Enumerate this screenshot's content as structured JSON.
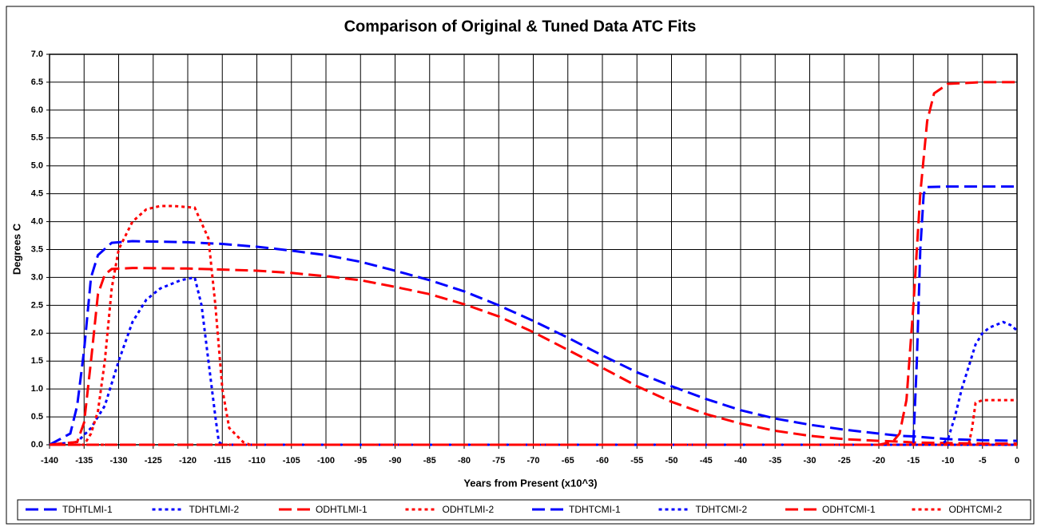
{
  "chart_data": {
    "type": "line",
    "title": "Comparison of Original & Tuned Data ATC Fits",
    "xlabel": "Years from Present (x10^3)",
    "ylabel": "Degrees C",
    "xlim": [
      -140,
      0
    ],
    "xticks": [
      -140,
      -135,
      -130,
      -125,
      -120,
      -115,
      -110,
      -105,
      -100,
      -95,
      -90,
      -85,
      -80,
      -75,
      -70,
      -65,
      -60,
      -55,
      -50,
      -45,
      -40,
      -35,
      -30,
      -25,
      -20,
      -15,
      -10,
      -5,
      0
    ],
    "ylim": [
      0,
      7
    ],
    "yticks": [
      {
        "value": 0,
        "label": "0.0"
      },
      0.5,
      {
        "value": 1,
        "label": "1.0"
      },
      1.5,
      {
        "value": 2,
        "label": "2.0"
      },
      2.5,
      {
        "value": 3,
        "label": "3.0"
      },
      3.5,
      {
        "value": 4,
        "label": "4.0"
      },
      4.5,
      {
        "value": 5,
        "label": "5.0"
      },
      5.5,
      {
        "value": 6,
        "label": "6.0"
      },
      6.5,
      {
        "value": 7,
        "label": "7.0"
      }
    ],
    "grid": true,
    "legend": "bottom",
    "series": [
      {
        "name": "TDHTLMI-1",
        "color": "#0000ff",
        "style": "dash",
        "x": [
          -140,
          -137,
          -136,
          -135,
          -134,
          -133,
          -131,
          -128,
          -120,
          -115,
          -110,
          -105,
          -100,
          -95,
          -90,
          -85,
          -80,
          -75,
          -70,
          -65,
          -60,
          -55,
          -50,
          -45,
          -40,
          -35,
          -30,
          -25,
          -20,
          -17,
          -15,
          -12,
          -10,
          -5,
          0
        ],
        "values": [
          0,
          0.2,
          0.7,
          1.7,
          3.0,
          3.4,
          3.62,
          3.65,
          3.63,
          3.6,
          3.55,
          3.48,
          3.4,
          3.28,
          3.12,
          2.95,
          2.75,
          2.5,
          2.22,
          1.92,
          1.6,
          1.3,
          1.05,
          0.82,
          0.62,
          0.47,
          0.36,
          0.27,
          0.2,
          0.16,
          0.15,
          0.12,
          0.1,
          0.08,
          0.07
        ]
      },
      {
        "name": "TDHTLMI-2",
        "color": "#0000ff",
        "style": "dot",
        "x": [
          -140,
          -136,
          -134,
          -132,
          -130,
          -128,
          -126,
          -124,
          -121,
          -119,
          -118,
          -117,
          -116,
          -115.5,
          -115,
          0
        ],
        "values": [
          0,
          0.05,
          0.3,
          0.7,
          1.5,
          2.2,
          2.6,
          2.8,
          2.95,
          3.0,
          2.5,
          1.5,
          0.5,
          0.05,
          0,
          0
        ]
      },
      {
        "name": "ODHTLMI-1",
        "color": "#ff0000",
        "style": "dash",
        "x": [
          -140,
          -136,
          -135,
          -134,
          -133,
          -132,
          -131,
          -128,
          -120,
          -115,
          -110,
          -105,
          -100,
          -95,
          -90,
          -85,
          -80,
          -75,
          -70,
          -65,
          -60,
          -55,
          -50,
          -45,
          -40,
          -35,
          -30,
          -25,
          -20,
          -16,
          -15,
          -10,
          -5,
          0
        ],
        "values": [
          0,
          0.05,
          0.4,
          1.5,
          2.7,
          3.05,
          3.15,
          3.17,
          3.16,
          3.14,
          3.12,
          3.08,
          3.02,
          2.95,
          2.83,
          2.7,
          2.52,
          2.3,
          2.02,
          1.7,
          1.38,
          1.05,
          0.77,
          0.55,
          0.38,
          0.25,
          0.16,
          0.1,
          0.07,
          0.05,
          0.04,
          0.03,
          0.02,
          0.02
        ]
      },
      {
        "name": "ODHTLMI-2",
        "color": "#ff0000",
        "style": "dot",
        "x": [
          -140,
          -135,
          -134,
          -133,
          -132,
          -131,
          -130,
          -128,
          -126,
          -124,
          -122,
          -119,
          -117,
          -116,
          -115,
          -114,
          -112,
          -111,
          0
        ],
        "values": [
          0,
          0,
          0.2,
          0.6,
          1.5,
          2.8,
          3.5,
          4.0,
          4.22,
          4.28,
          4.28,
          4.25,
          3.7,
          2.5,
          1.0,
          0.3,
          0.05,
          0,
          0
        ]
      },
      {
        "name": "TDHTCMI-1",
        "color": "#0000ff",
        "style": "dash",
        "x": [
          -140,
          -16,
          -15,
          -14.5,
          -14,
          -13.5,
          -13,
          -10,
          0
        ],
        "values": [
          0,
          0,
          0.05,
          1.5,
          3.5,
          4.5,
          4.62,
          4.63,
          4.63
        ]
      },
      {
        "name": "TDHTCMI-2",
        "color": "#0000ff",
        "style": "dot",
        "x": [
          -140,
          -11,
          -10,
          -9,
          -8,
          -7,
          -6,
          -5,
          -4,
          -2,
          -1,
          0
        ],
        "values": [
          0,
          0,
          0.1,
          0.5,
          1.0,
          1.4,
          1.8,
          2.0,
          2.1,
          2.2,
          2.15,
          2.05
        ]
      },
      {
        "name": "ODHTCMI-1",
        "color": "#ff0000",
        "style": "dash",
        "x": [
          -140,
          -20,
          -18,
          -17,
          -16,
          -15,
          -14,
          -13,
          -12,
          -10,
          -5,
          0
        ],
        "values": [
          0,
          0,
          0.05,
          0.2,
          0.8,
          2.5,
          4.5,
          5.8,
          6.3,
          6.47,
          6.5,
          6.5
        ]
      },
      {
        "name": "ODHTCMI-2",
        "color": "#ff0000",
        "style": "dot",
        "x": [
          -140,
          -7,
          -6.5,
          -6,
          -5,
          0
        ],
        "values": [
          0,
          0,
          0.3,
          0.75,
          0.8,
          0.8
        ]
      }
    ]
  }
}
